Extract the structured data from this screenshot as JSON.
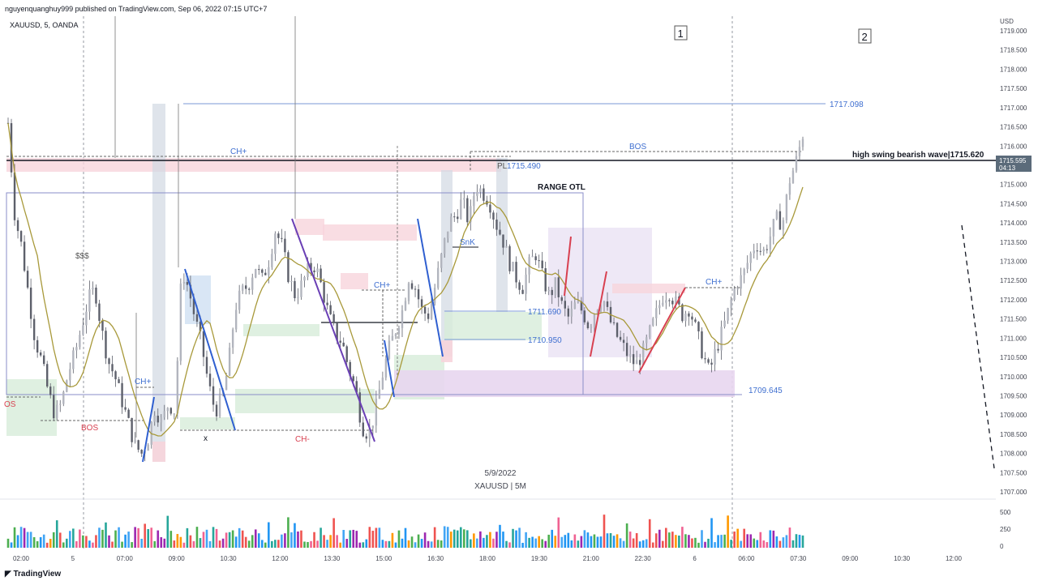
{
  "header": {
    "published": "nguyenquanghuy999 published on TradingView.com, Sep 06, 2022 07:15 UTC+7",
    "symbol": "XAUUSD, 5, OANDA",
    "brand": "TradingView"
  },
  "chart_data": {
    "type": "candlestick",
    "currency_label": "USD",
    "price_ticks": [
      "1719.000",
      "1718.500",
      "1718.000",
      "1717.500",
      "1717.000",
      "1716.500",
      "1716.000",
      "1715.500",
      "1715.000",
      "1714.500",
      "1714.000",
      "1713.500",
      "1713.000",
      "1712.500",
      "1712.000",
      "1711.500",
      "1711.000",
      "1710.500",
      "1710.000",
      "1709.500",
      "1709.000",
      "1708.500",
      "1708.000",
      "1707.500",
      "1707.000"
    ],
    "ylim": [
      1707.0,
      1719.25
    ],
    "time_ticks": [
      "02:00",
      "5",
      "07:00",
      "09:00",
      "10:30",
      "12:00",
      "13:30",
      "15:00",
      "16:30",
      "18:00",
      "19:30",
      "21:00",
      "22:30",
      "6",
      "06:00",
      "07:30",
      "09:00",
      "10:30",
      "12:00"
    ],
    "volume_ticks": [
      "500",
      "250",
      "0"
    ],
    "current_price": "1715.595",
    "countdown": "04:13",
    "watermark": {
      "date": "5/9/2022",
      "label": "XAUUSD | 5M"
    },
    "price_path": [
      1716.6,
      1714.2,
      1713.4,
      1712.2,
      1711.0,
      1710.4,
      1709.6,
      1709.0,
      1709.3,
      1710.1,
      1710.6,
      1711.3,
      1712.0,
      1712.3,
      1711.2,
      1710.4,
      1710.0,
      1709.4,
      1708.8,
      1708.2,
      1708.0,
      1708.4,
      1709.2,
      1708.8,
      1709.3,
      1709.1,
      1712.8,
      1712.3,
      1711.5,
      1710.8,
      1709.8,
      1709.1,
      1709.4,
      1710.3,
      1711.8,
      1712.2,
      1712.4,
      1712.9,
      1712.5,
      1713.0,
      1713.8,
      1713.4,
      1712.6,
      1712.1,
      1712.4,
      1712.8,
      1712.9,
      1712.3,
      1711.6,
      1711.1,
      1710.9,
      1710.2,
      1709.7,
      1708.7,
      1708.5,
      1709.1,
      1710.0,
      1710.7,
      1711.2,
      1711.7,
      1712.6,
      1712.3,
      1711.7,
      1711.6,
      1712.4,
      1713.2,
      1714.0,
      1714.2,
      1714.6,
      1714.0,
      1715.0,
      1714.8,
      1714.6,
      1714.0,
      1713.6,
      1713.0,
      1712.6,
      1712.3,
      1712.9,
      1713.2,
      1712.6,
      1712.1,
      1712.4,
      1711.8,
      1711.5,
      1711.9,
      1711.7,
      1711.3,
      1711.8,
      1712.1,
      1711.5,
      1711.1,
      1710.8,
      1710.5,
      1710.3,
      1710.6,
      1711.1,
      1711.6,
      1712.1,
      1712.2,
      1711.9,
      1711.6,
      1711.8,
      1711.2,
      1710.6,
      1710.1,
      1710.7,
      1711.2,
      1711.8,
      1712.4,
      1712.6,
      1713.1,
      1713.5,
      1713.2,
      1713.6,
      1714.1,
      1714.0,
      1715.1,
      1715.6,
      1716.3
    ]
  },
  "annotations": {
    "bos_top": "BOS",
    "bos_left": "BOS",
    "bos_edge": "OS",
    "chplus_top": "CH+",
    "chplus_left": "CH+",
    "chplus_mid": "CH+",
    "chplus_right": "CH+",
    "chminus": "CH-",
    "dollars": "$$$",
    "x_mark": "x",
    "snk": "SnK",
    "range_otl": "RANGE OTL",
    "pl_label": "PL",
    "p_1715_490": "1715.490",
    "p_1711_690": "1711.690",
    "p_1710_950": "1710.950",
    "p_1709_645": "1709.645",
    "p_1717_098": "1717.098",
    "high_swing": "high swing bearish wave|1715.620",
    "box1": "1",
    "box2": "2"
  }
}
